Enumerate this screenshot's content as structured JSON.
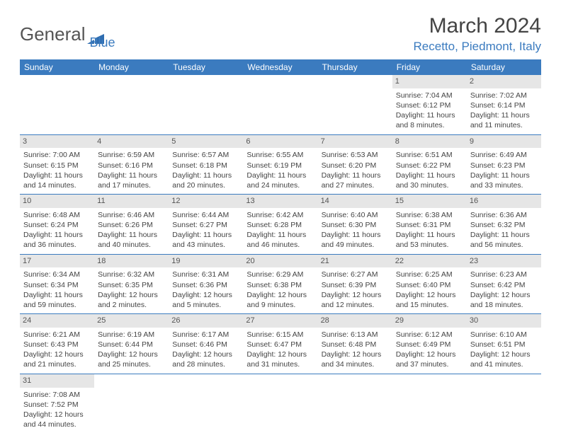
{
  "logo": {
    "part1": "General",
    "part2": "Blue"
  },
  "title": "March 2024",
  "location": "Recetto, Piedmont, Italy",
  "colors": {
    "header_bg": "#3b7bbf",
    "header_text": "#ffffff",
    "rule": "#3b7bbf",
    "daynum_bg": "#e6e6e6",
    "text": "#444444",
    "location_color": "#3b7bbf",
    "month_title_color": "#444444"
  },
  "typography": {
    "title_fontsize": 30,
    "location_fontsize": 17,
    "header_fontsize": 12,
    "cell_fontsize": 10.5,
    "font_family": "Arial"
  },
  "dayHeaders": [
    "Sunday",
    "Monday",
    "Tuesday",
    "Wednesday",
    "Thursday",
    "Friday",
    "Saturday"
  ],
  "weeks": [
    [
      null,
      null,
      null,
      null,
      null,
      {
        "n": "1",
        "sr": "Sunrise: 7:04 AM",
        "ss": "Sunset: 6:12 PM",
        "dl": "Daylight: 11 hours and 8 minutes."
      },
      {
        "n": "2",
        "sr": "Sunrise: 7:02 AM",
        "ss": "Sunset: 6:14 PM",
        "dl": "Daylight: 11 hours and 11 minutes."
      }
    ],
    [
      {
        "n": "3",
        "sr": "Sunrise: 7:00 AM",
        "ss": "Sunset: 6:15 PM",
        "dl": "Daylight: 11 hours and 14 minutes."
      },
      {
        "n": "4",
        "sr": "Sunrise: 6:59 AM",
        "ss": "Sunset: 6:16 PM",
        "dl": "Daylight: 11 hours and 17 minutes."
      },
      {
        "n": "5",
        "sr": "Sunrise: 6:57 AM",
        "ss": "Sunset: 6:18 PM",
        "dl": "Daylight: 11 hours and 20 minutes."
      },
      {
        "n": "6",
        "sr": "Sunrise: 6:55 AM",
        "ss": "Sunset: 6:19 PM",
        "dl": "Daylight: 11 hours and 24 minutes."
      },
      {
        "n": "7",
        "sr": "Sunrise: 6:53 AM",
        "ss": "Sunset: 6:20 PM",
        "dl": "Daylight: 11 hours and 27 minutes."
      },
      {
        "n": "8",
        "sr": "Sunrise: 6:51 AM",
        "ss": "Sunset: 6:22 PM",
        "dl": "Daylight: 11 hours and 30 minutes."
      },
      {
        "n": "9",
        "sr": "Sunrise: 6:49 AM",
        "ss": "Sunset: 6:23 PM",
        "dl": "Daylight: 11 hours and 33 minutes."
      }
    ],
    [
      {
        "n": "10",
        "sr": "Sunrise: 6:48 AM",
        "ss": "Sunset: 6:24 PM",
        "dl": "Daylight: 11 hours and 36 minutes."
      },
      {
        "n": "11",
        "sr": "Sunrise: 6:46 AM",
        "ss": "Sunset: 6:26 PM",
        "dl": "Daylight: 11 hours and 40 minutes."
      },
      {
        "n": "12",
        "sr": "Sunrise: 6:44 AM",
        "ss": "Sunset: 6:27 PM",
        "dl": "Daylight: 11 hours and 43 minutes."
      },
      {
        "n": "13",
        "sr": "Sunrise: 6:42 AM",
        "ss": "Sunset: 6:28 PM",
        "dl": "Daylight: 11 hours and 46 minutes."
      },
      {
        "n": "14",
        "sr": "Sunrise: 6:40 AM",
        "ss": "Sunset: 6:30 PM",
        "dl": "Daylight: 11 hours and 49 minutes."
      },
      {
        "n": "15",
        "sr": "Sunrise: 6:38 AM",
        "ss": "Sunset: 6:31 PM",
        "dl": "Daylight: 11 hours and 53 minutes."
      },
      {
        "n": "16",
        "sr": "Sunrise: 6:36 AM",
        "ss": "Sunset: 6:32 PM",
        "dl": "Daylight: 11 hours and 56 minutes."
      }
    ],
    [
      {
        "n": "17",
        "sr": "Sunrise: 6:34 AM",
        "ss": "Sunset: 6:34 PM",
        "dl": "Daylight: 11 hours and 59 minutes."
      },
      {
        "n": "18",
        "sr": "Sunrise: 6:32 AM",
        "ss": "Sunset: 6:35 PM",
        "dl": "Daylight: 12 hours and 2 minutes."
      },
      {
        "n": "19",
        "sr": "Sunrise: 6:31 AM",
        "ss": "Sunset: 6:36 PM",
        "dl": "Daylight: 12 hours and 5 minutes."
      },
      {
        "n": "20",
        "sr": "Sunrise: 6:29 AM",
        "ss": "Sunset: 6:38 PM",
        "dl": "Daylight: 12 hours and 9 minutes."
      },
      {
        "n": "21",
        "sr": "Sunrise: 6:27 AM",
        "ss": "Sunset: 6:39 PM",
        "dl": "Daylight: 12 hours and 12 minutes."
      },
      {
        "n": "22",
        "sr": "Sunrise: 6:25 AM",
        "ss": "Sunset: 6:40 PM",
        "dl": "Daylight: 12 hours and 15 minutes."
      },
      {
        "n": "23",
        "sr": "Sunrise: 6:23 AM",
        "ss": "Sunset: 6:42 PM",
        "dl": "Daylight: 12 hours and 18 minutes."
      }
    ],
    [
      {
        "n": "24",
        "sr": "Sunrise: 6:21 AM",
        "ss": "Sunset: 6:43 PM",
        "dl": "Daylight: 12 hours and 21 minutes."
      },
      {
        "n": "25",
        "sr": "Sunrise: 6:19 AM",
        "ss": "Sunset: 6:44 PM",
        "dl": "Daylight: 12 hours and 25 minutes."
      },
      {
        "n": "26",
        "sr": "Sunrise: 6:17 AM",
        "ss": "Sunset: 6:46 PM",
        "dl": "Daylight: 12 hours and 28 minutes."
      },
      {
        "n": "27",
        "sr": "Sunrise: 6:15 AM",
        "ss": "Sunset: 6:47 PM",
        "dl": "Daylight: 12 hours and 31 minutes."
      },
      {
        "n": "28",
        "sr": "Sunrise: 6:13 AM",
        "ss": "Sunset: 6:48 PM",
        "dl": "Daylight: 12 hours and 34 minutes."
      },
      {
        "n": "29",
        "sr": "Sunrise: 6:12 AM",
        "ss": "Sunset: 6:49 PM",
        "dl": "Daylight: 12 hours and 37 minutes."
      },
      {
        "n": "30",
        "sr": "Sunrise: 6:10 AM",
        "ss": "Sunset: 6:51 PM",
        "dl": "Daylight: 12 hours and 41 minutes."
      }
    ],
    [
      {
        "n": "31",
        "sr": "Sunrise: 7:08 AM",
        "ss": "Sunset: 7:52 PM",
        "dl": "Daylight: 12 hours and 44 minutes."
      },
      null,
      null,
      null,
      null,
      null,
      null
    ]
  ]
}
